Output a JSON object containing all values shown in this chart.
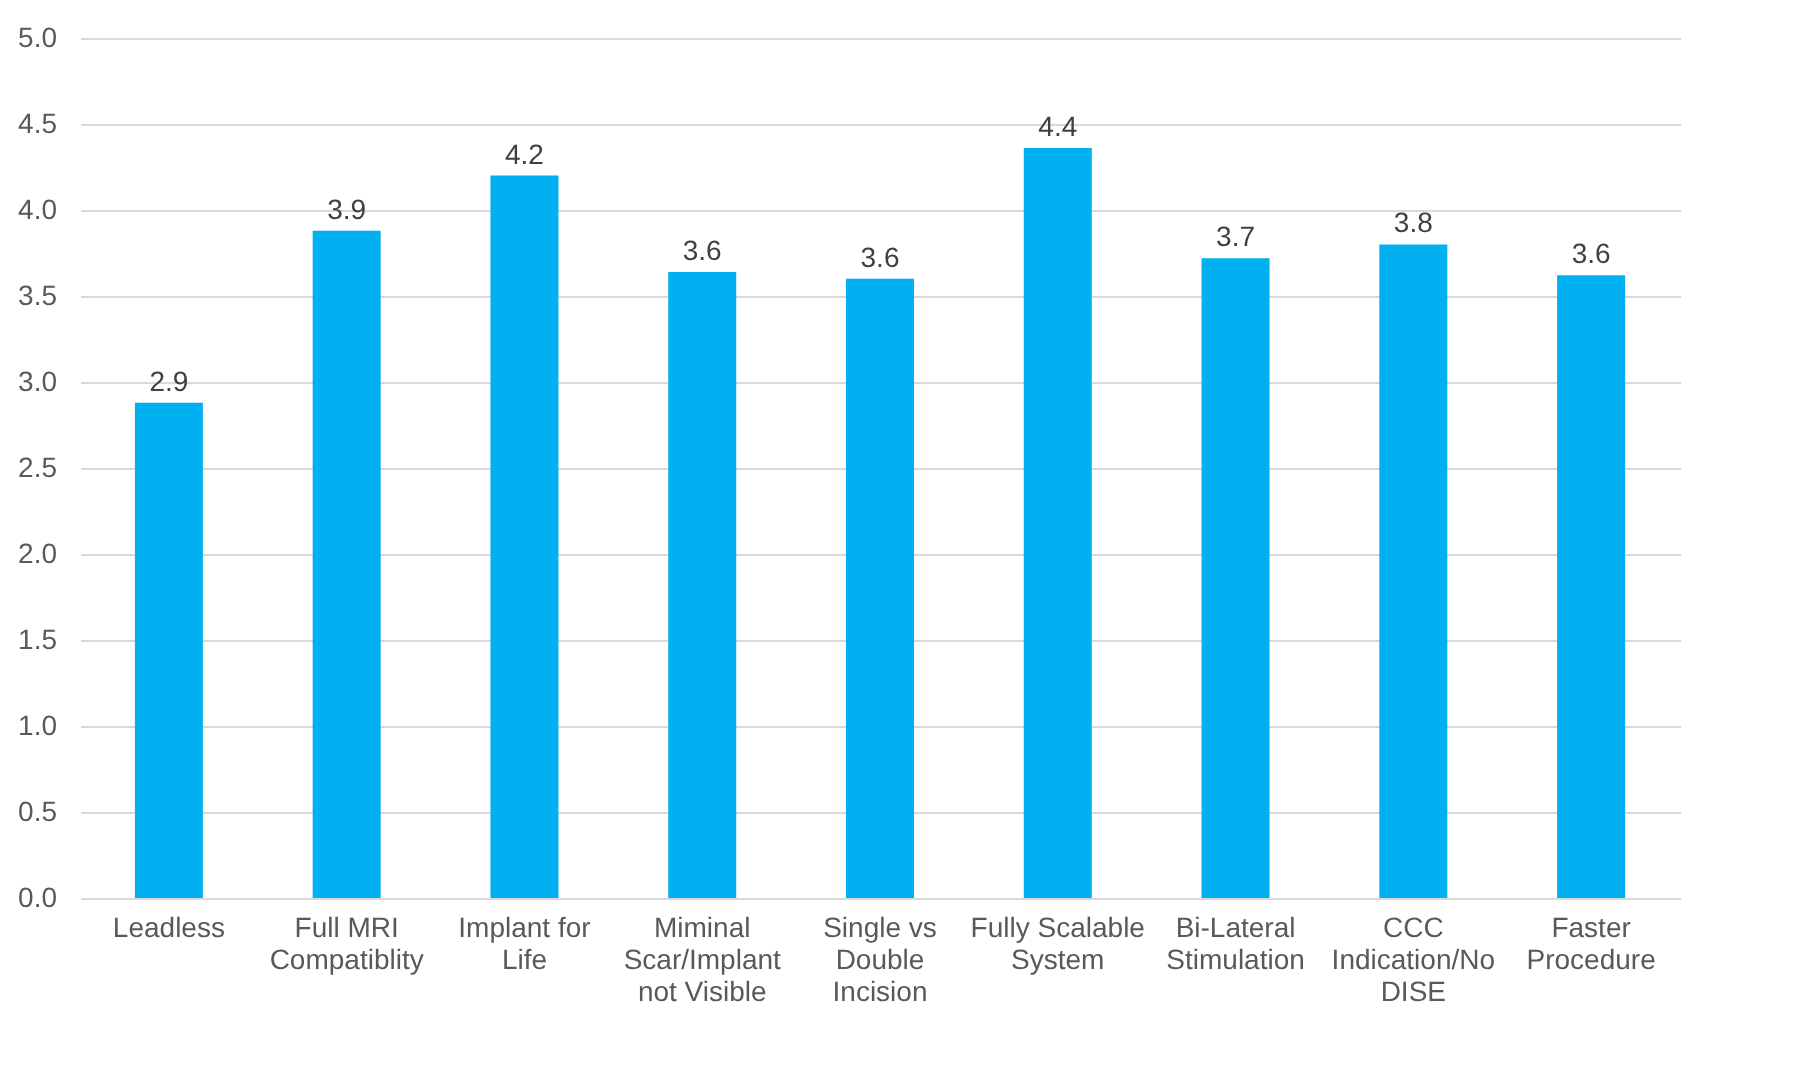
{
  "chart_data": {
    "type": "bar",
    "categories": [
      "Leadless",
      "Full MRI Compatiblity",
      "Implant for Life",
      "Miminal Scar/Implant not Visible",
      "Single vs Double Incision",
      "Fully Scalable System",
      "Bi-Lateral Stimulation",
      "CCC Indication/No DISE",
      "Faster Procedure"
    ],
    "values": [
      2.88,
      3.88,
      4.2,
      3.64,
      3.6,
      4.36,
      3.72,
      3.8,
      3.62
    ],
    "value_labels": [
      "2.9",
      "3.9",
      "4.2",
      "3.6",
      "3.6",
      "4.4",
      "3.7",
      "3.8",
      "3.6"
    ],
    "color": "#00b0f0",
    "ylim": [
      0,
      5
    ],
    "yticks": [
      {
        "value": 0,
        "label": "0.0"
      },
      {
        "value": 0.5,
        "label": "0.5"
      },
      {
        "value": 1,
        "label": "1.0"
      },
      {
        "value": 1.5,
        "label": "1.5"
      },
      {
        "value": 2,
        "label": "2.0"
      },
      {
        "value": 2.5,
        "label": "2.5"
      },
      {
        "value": 3,
        "label": "3.0"
      },
      {
        "value": 3.5,
        "label": "3.5"
      },
      {
        "value": 4,
        "label": "4.0"
      },
      {
        "value": 4.5,
        "label": "4.5"
      },
      {
        "value": 5,
        "label": "5.0"
      }
    ],
    "grid": "y"
  }
}
